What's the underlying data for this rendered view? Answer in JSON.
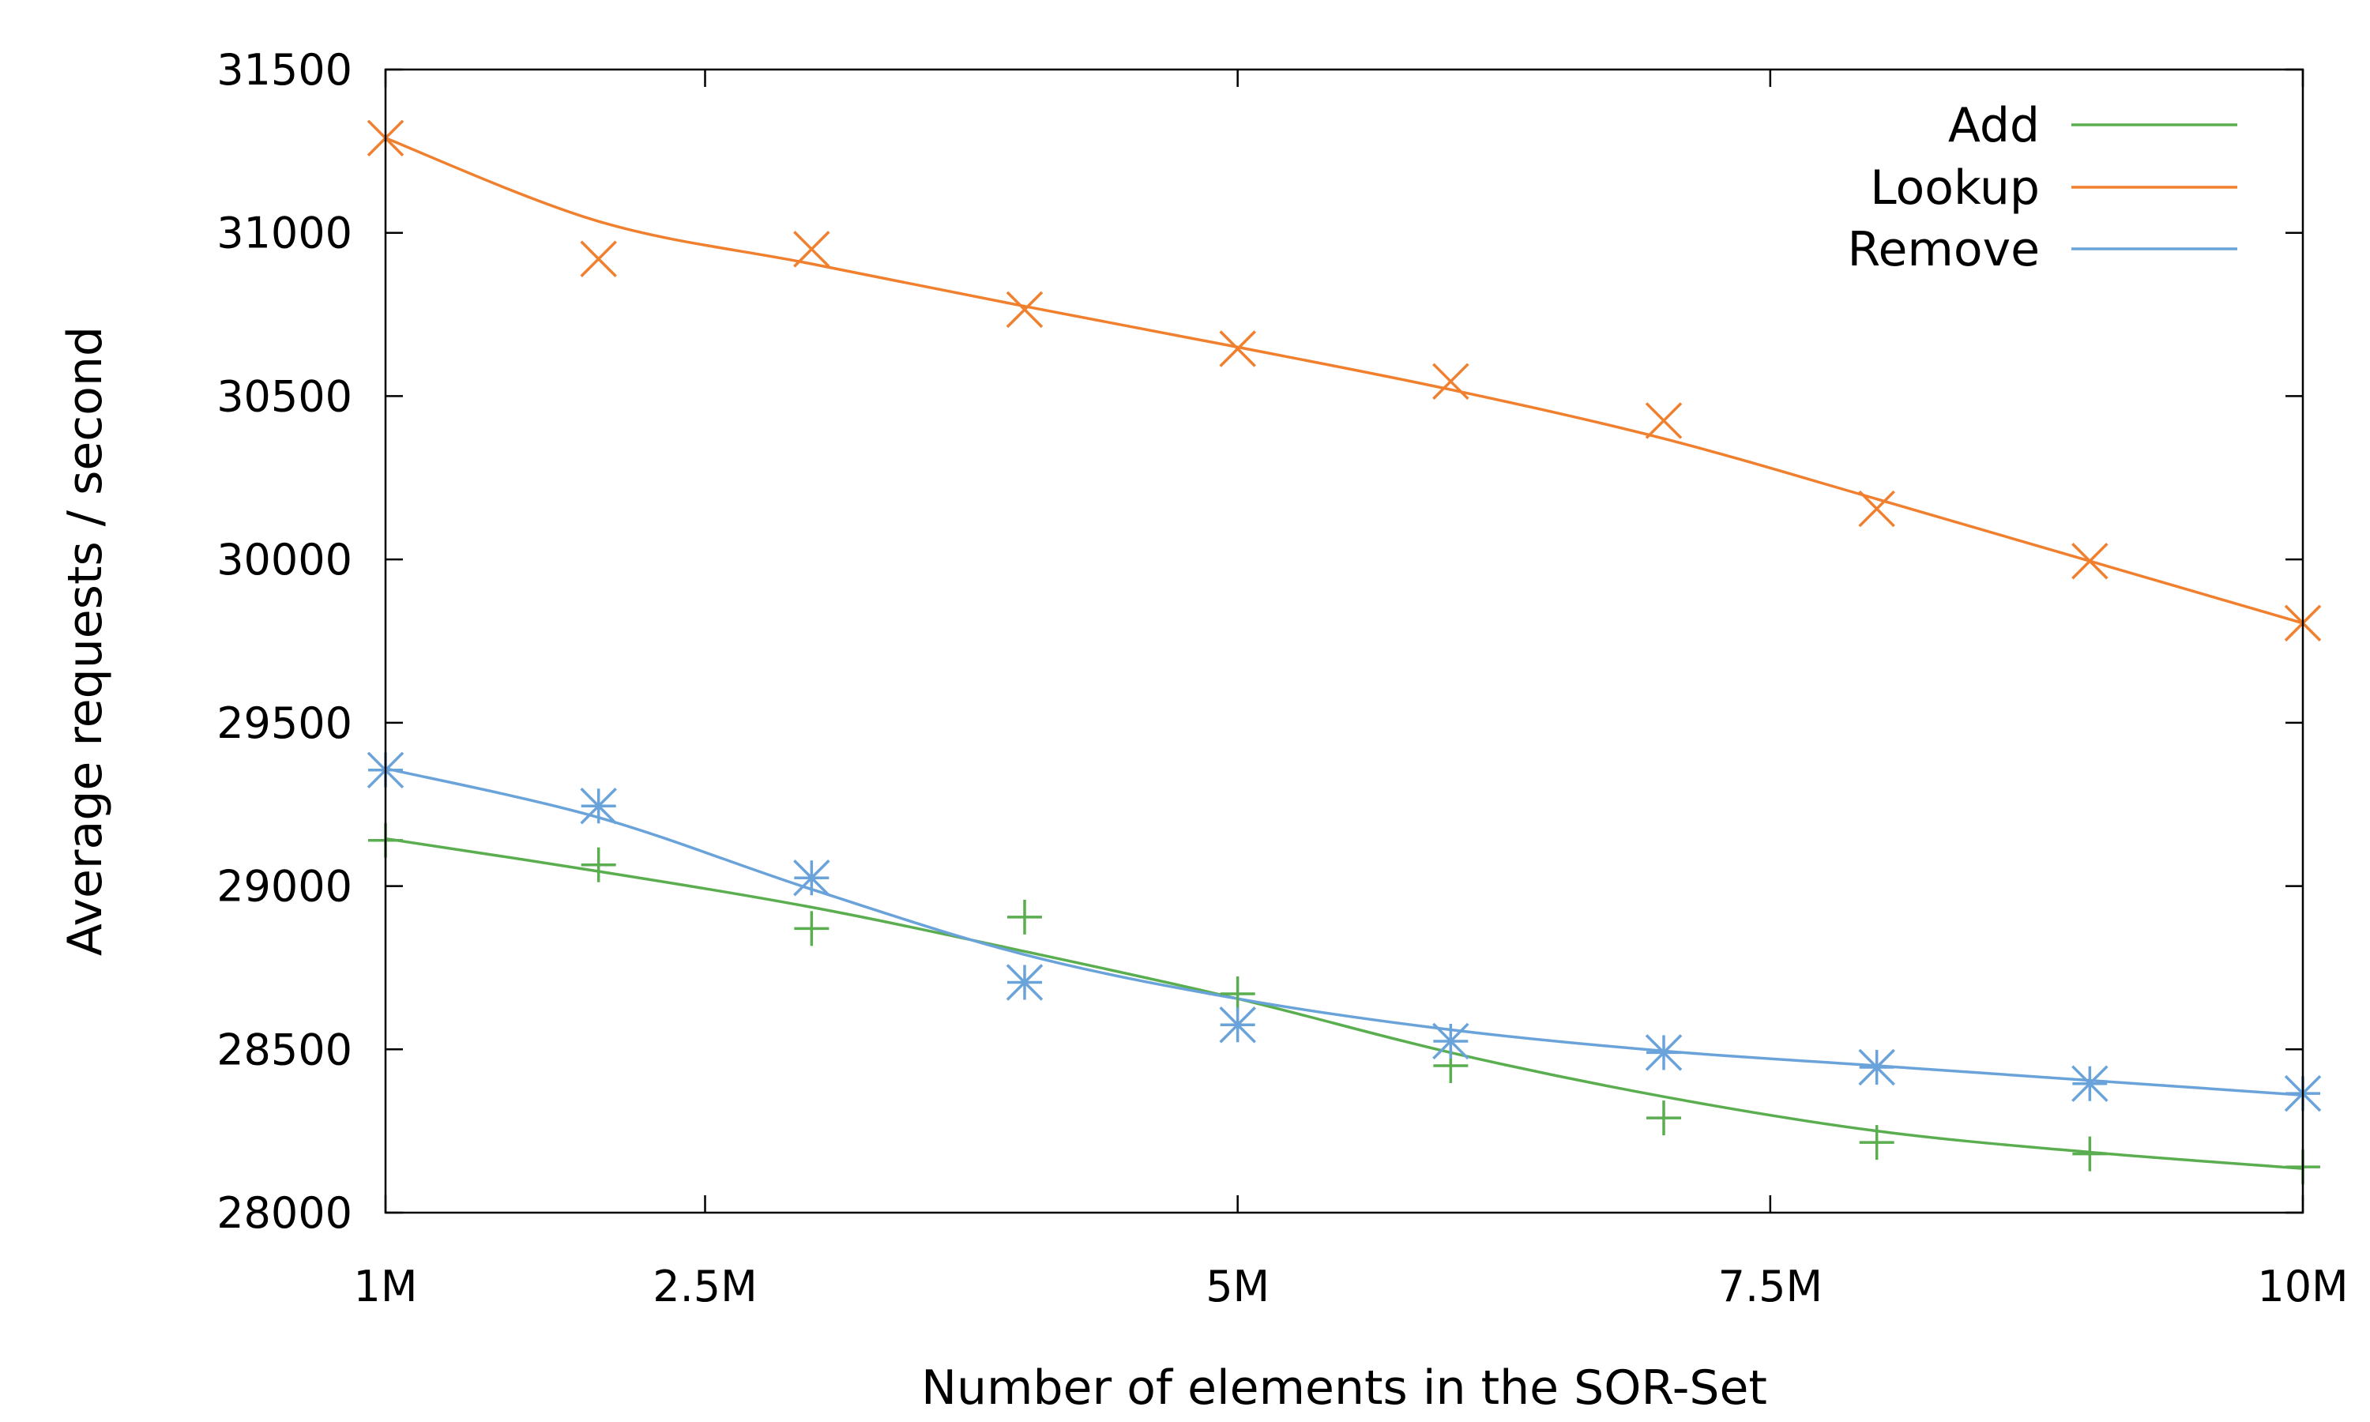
{
  "chart_data": {
    "type": "line",
    "xlabel": "Number of elements in the SOR-Set",
    "ylabel": "Average requests / second",
    "xlim": [
      1,
      10
    ],
    "ylim": [
      28000,
      31500
    ],
    "x_ticks": [
      {
        "value": 1,
        "label": "1M"
      },
      {
        "value": 2.5,
        "label": "2.5M"
      },
      {
        "value": 5,
        "label": "5M"
      },
      {
        "value": 7.5,
        "label": "7.5M"
      },
      {
        "value": 10,
        "label": "10M"
      }
    ],
    "y_ticks": [
      28000,
      28500,
      29000,
      29500,
      30000,
      30500,
      31000,
      31500
    ],
    "legend_position": "top-right",
    "series": [
      {
        "name": "Add",
        "color": "#5aae4f",
        "marker": "plus",
        "points": {
          "x": [
            1,
            2,
            3,
            4,
            5,
            6,
            7,
            8,
            9,
            10
          ],
          "y": [
            29140,
            29065,
            28870,
            28905,
            28670,
            28450,
            28290,
            28215,
            28180,
            28140
          ]
        },
        "fit": {
          "x": [
            1,
            2,
            3,
            4,
            5,
            6,
            7,
            8,
            9,
            10
          ],
          "y": [
            29145,
            29045,
            28935,
            28800,
            28655,
            28490,
            28355,
            28250,
            28185,
            28135
          ]
        }
      },
      {
        "name": "Lookup",
        "color": "#f07f2e",
        "marker": "cross",
        "points": {
          "x": [
            1,
            2,
            3,
            4,
            5,
            6,
            7,
            8,
            9,
            10
          ],
          "y": [
            31290,
            30920,
            30950,
            30765,
            30645,
            30545,
            30425,
            30155,
            29995,
            29805
          ]
        },
        "fit": {
          "x": [
            1,
            2,
            3,
            4,
            5,
            6,
            7,
            8,
            9,
            10
          ],
          "y": [
            31290,
            31035,
            30905,
            30775,
            30650,
            30520,
            30370,
            30185,
            29995,
            29805
          ]
        }
      },
      {
        "name": "Remove",
        "color": "#6aa3da",
        "marker": "star",
        "points": {
          "x": [
            1,
            2,
            3,
            4,
            5,
            6,
            7,
            8,
            9,
            10
          ],
          "y": [
            29355,
            29245,
            29025,
            28705,
            28575,
            28525,
            28490,
            28445,
            28395,
            28365
          ]
        },
        "fit": {
          "x": [
            1,
            2,
            3,
            4,
            5,
            6,
            7,
            8,
            9,
            10
          ],
          "y": [
            29360,
            29210,
            28990,
            28790,
            28655,
            28560,
            28495,
            28450,
            28405,
            28360
          ]
        }
      }
    ]
  }
}
